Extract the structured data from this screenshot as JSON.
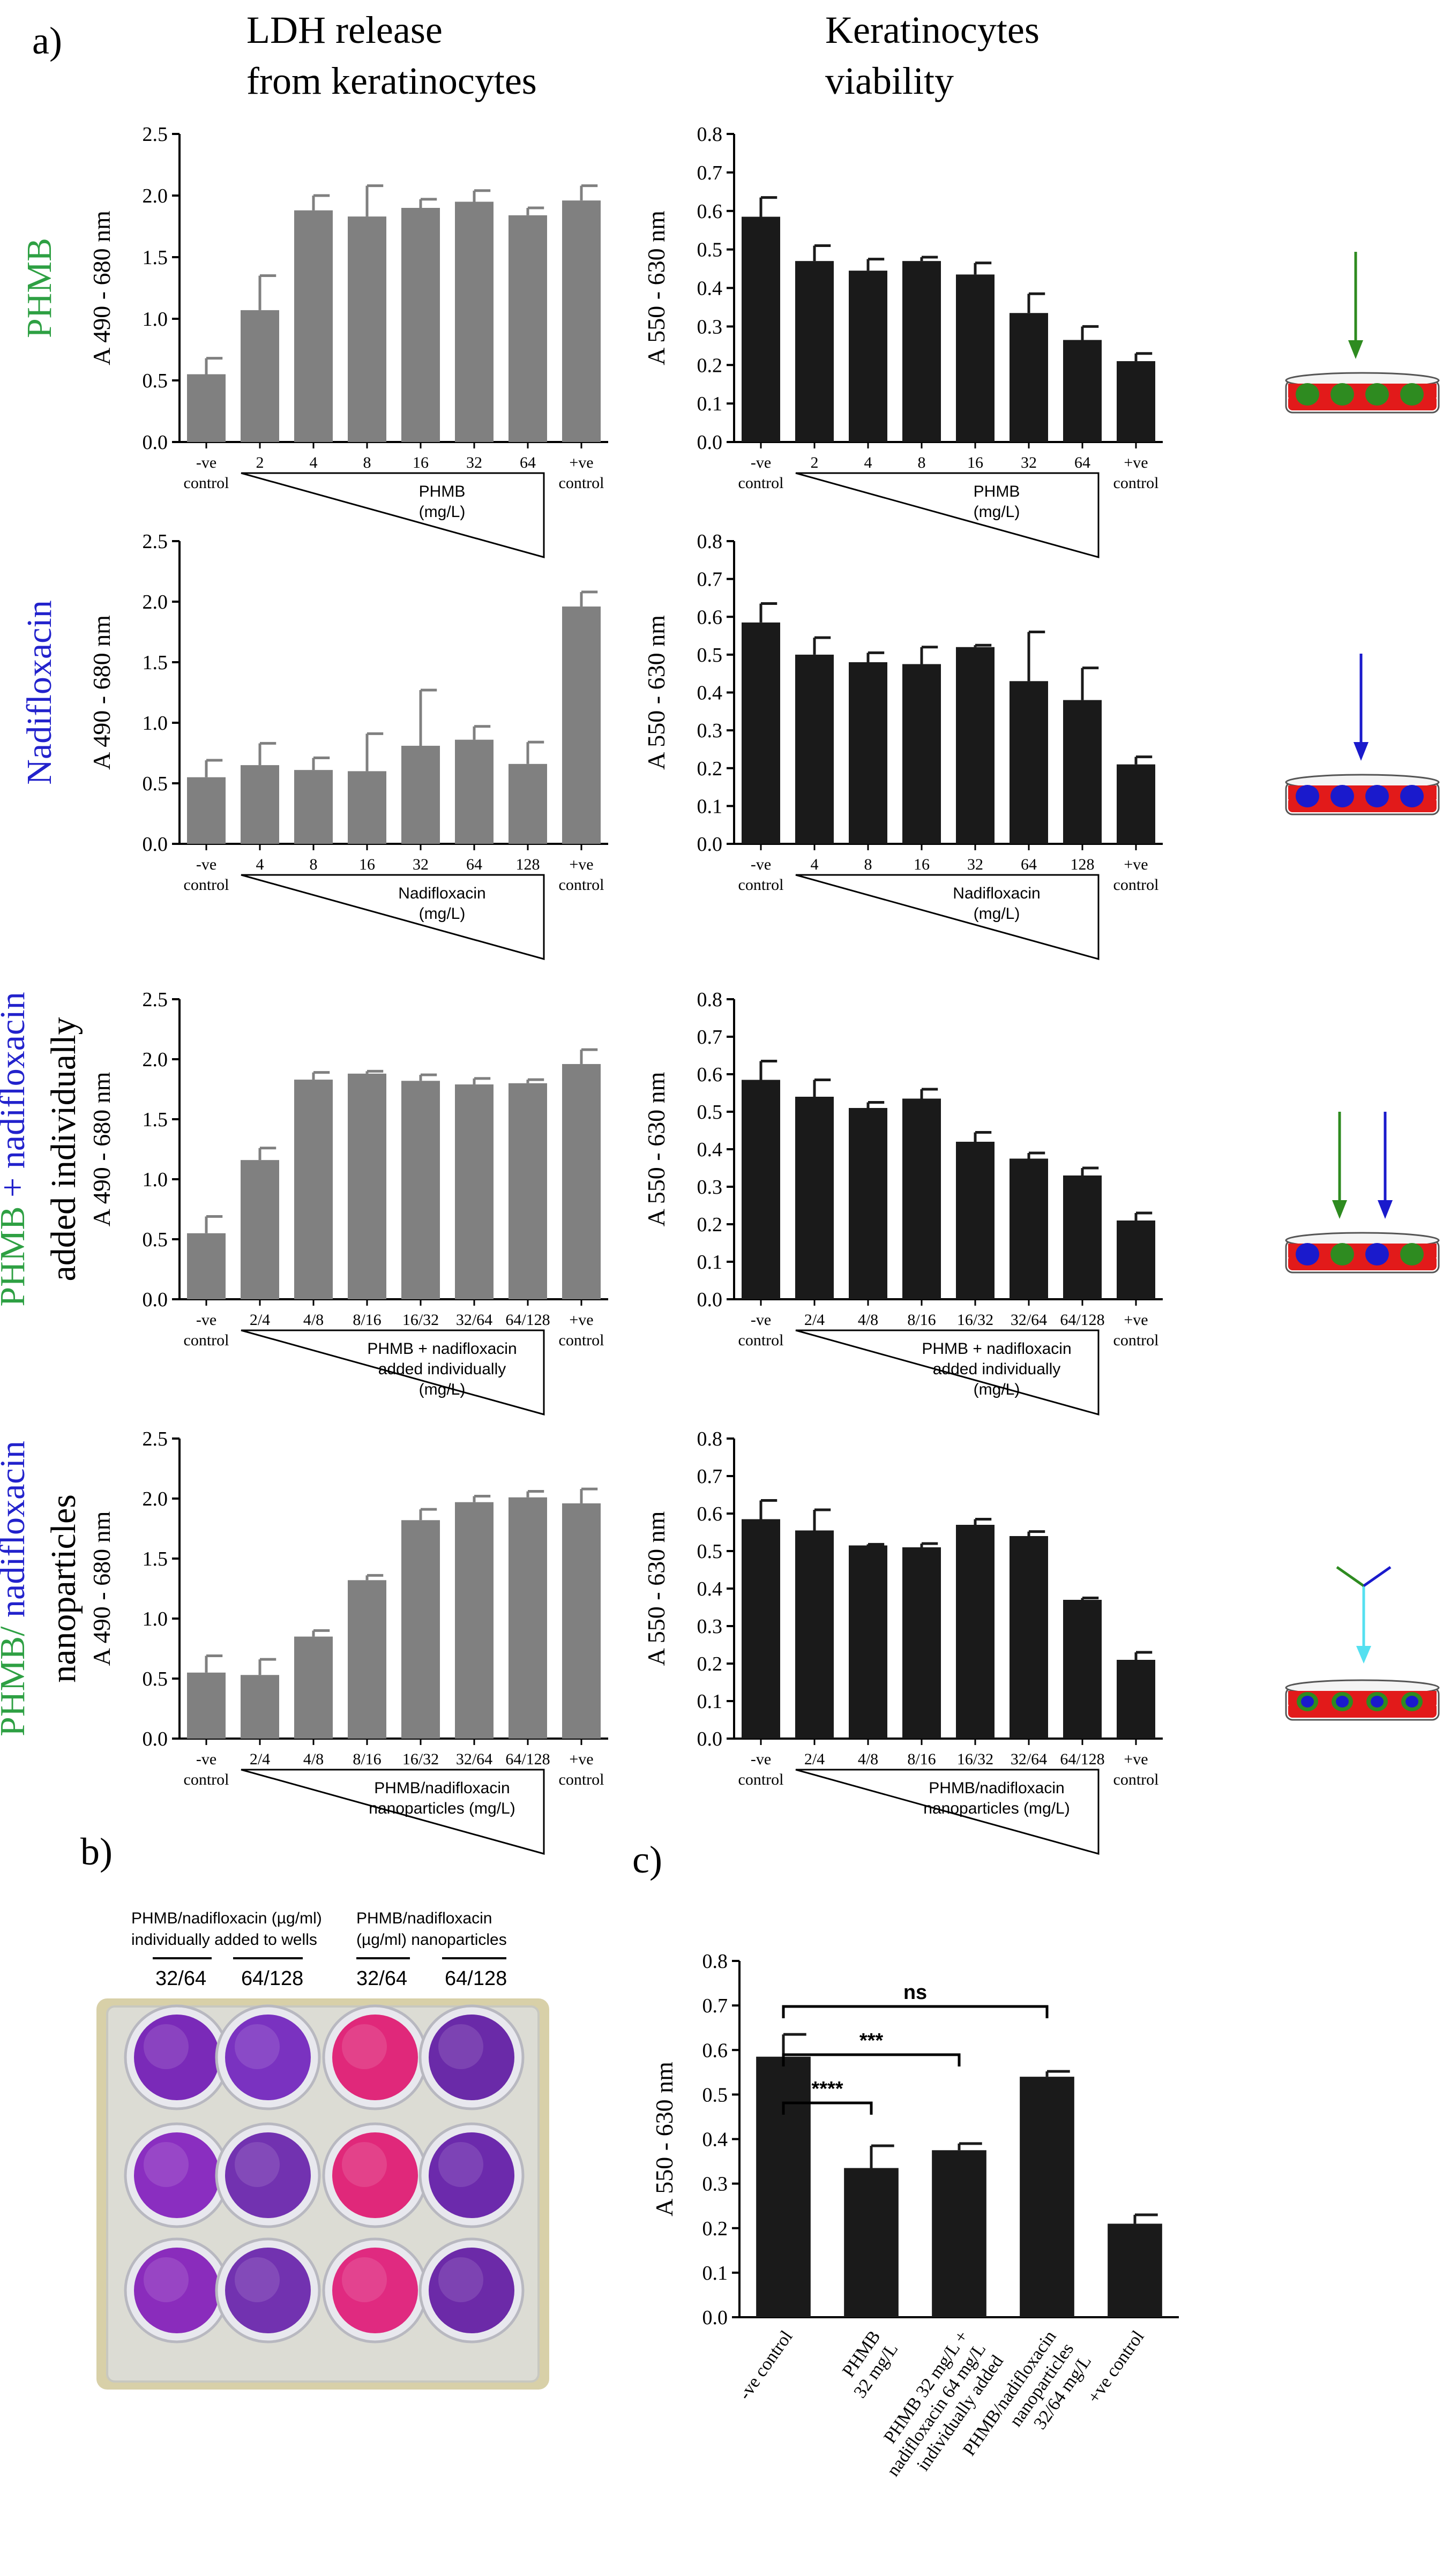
{
  "panel_a": {
    "label": "a)",
    "col_left_title": [
      "LDH release",
      "from keratinocytes"
    ],
    "col_right_title": [
      "Keratinocytes",
      "viability"
    ],
    "rows": [
      {
        "label_lines": [
          {
            "segments": [
              {
                "text": "PHMB",
                "color": "#2ea043"
              }
            ]
          }
        ]
      },
      {
        "label_lines": [
          {
            "segments": [
              {
                "text": "Nadifloxacin",
                "color": "#2222cc"
              }
            ]
          }
        ]
      },
      {
        "label_lines": [
          {
            "segments": [
              {
                "text": "PHMB",
                "color": "#2ea043"
              },
              {
                "text": " + ",
                "color": "#2222cc"
              },
              {
                "text": "nadifloxacin",
                "color": "#2222cc"
              }
            ]
          },
          {
            "segments": [
              {
                "text": "added individually",
                "color": "#000000"
              }
            ]
          }
        ]
      },
      {
        "label_lines": [
          {
            "segments": [
              {
                "text": "PHMB",
                "color": "#2ea043"
              },
              {
                "text": "/ ",
                "color": "#2ea043"
              },
              {
                "text": "nadifloxacin",
                "color": "#2222cc"
              }
            ]
          },
          {
            "segments": [
              {
                "text": "nanoparticles",
                "color": "#000000"
              }
            ]
          }
        ]
      }
    ]
  },
  "colors": {
    "ldh_bar": "#808080",
    "viability_bar": "#1a1a1a",
    "phmb": "#2e8b20",
    "nadifloxacin": "#1a1acc",
    "nano_stem": "#55e0f0",
    "dish_red": "#e21a1a"
  },
  "chart_data": [
    {
      "id": "ldh_phmb",
      "type": "bar",
      "ylabel": "A 490 - 680 nm",
      "ylim": [
        0,
        2.5
      ],
      "yticks": [
        "0.0",
        "0.5",
        "1.0",
        "1.5",
        "2.0",
        "2.5"
      ],
      "categories": [
        "-ve\ncontrol",
        "2",
        "4",
        "8",
        "16",
        "32",
        "64",
        "+ve\ncontrol"
      ],
      "values": [
        0.55,
        1.07,
        1.88,
        1.83,
        1.9,
        1.95,
        1.84,
        1.96
      ],
      "errors": [
        0.13,
        0.28,
        0.12,
        0.25,
        0.07,
        0.09,
        0.06,
        0.12
      ],
      "wedge_label": [
        "PHMB",
        "(mg/L)"
      ]
    },
    {
      "id": "via_phmb",
      "type": "bar",
      "ylabel": "A 550 - 630 nm",
      "ylim": [
        0,
        0.8
      ],
      "yticks": [
        "0.0",
        "0.1",
        "0.2",
        "0.3",
        "0.4",
        "0.5",
        "0.6",
        "0.7",
        "0.8"
      ],
      "categories": [
        "-ve\ncontrol",
        "2",
        "4",
        "8",
        "16",
        "32",
        "64",
        "+ve\ncontrol"
      ],
      "values": [
        0.585,
        0.47,
        0.445,
        0.47,
        0.435,
        0.335,
        0.265,
        0.21
      ],
      "errors": [
        0.05,
        0.04,
        0.03,
        0.01,
        0.03,
        0.05,
        0.035,
        0.02
      ],
      "wedge_label": [
        "PHMB",
        "(mg/L)"
      ]
    },
    {
      "id": "ldh_nadi",
      "type": "bar",
      "ylabel": "A 490 - 680 nm",
      "ylim": [
        0,
        2.5
      ],
      "yticks": [
        "0.0",
        "0.5",
        "1.0",
        "1.5",
        "2.0",
        "2.5"
      ],
      "categories": [
        "-ve\ncontrol",
        "4",
        "8",
        "16",
        "32",
        "64",
        "128",
        "+ve\ncontrol"
      ],
      "values": [
        0.55,
        0.65,
        0.61,
        0.6,
        0.81,
        0.86,
        0.66,
        1.96
      ],
      "errors": [
        0.14,
        0.18,
        0.1,
        0.31,
        0.46,
        0.11,
        0.18,
        0.12
      ],
      "wedge_label": [
        "Nadifloxacin",
        "(mg/L)"
      ]
    },
    {
      "id": "via_nadi",
      "type": "bar",
      "ylabel": "A 550 - 630 nm",
      "ylim": [
        0,
        0.8
      ],
      "yticks": [
        "0.0",
        "0.1",
        "0.2",
        "0.3",
        "0.4",
        "0.5",
        "0.6",
        "0.7",
        "0.8"
      ],
      "categories": [
        "-ve\ncontrol",
        "4",
        "8",
        "16",
        "32",
        "64",
        "128",
        "+ve\ncontrol"
      ],
      "values": [
        0.585,
        0.5,
        0.48,
        0.475,
        0.52,
        0.43,
        0.38,
        0.21
      ],
      "errors": [
        0.05,
        0.045,
        0.025,
        0.045,
        0.005,
        0.13,
        0.085,
        0.02
      ],
      "wedge_label": [
        "Nadifloxacin",
        "(mg/L)"
      ]
    },
    {
      "id": "ldh_indiv",
      "type": "bar",
      "ylabel": "A 490 - 680 nm",
      "ylim": [
        0,
        2.5
      ],
      "yticks": [
        "0.0",
        "0.5",
        "1.0",
        "1.5",
        "2.0",
        "2.5"
      ],
      "categories": [
        "-ve\ncontrol",
        "2/4",
        "4/8",
        "8/16",
        "16/32",
        "32/64",
        "64/128",
        "+ve\ncontrol"
      ],
      "values": [
        0.55,
        1.16,
        1.83,
        1.88,
        1.82,
        1.79,
        1.8,
        1.96
      ],
      "errors": [
        0.14,
        0.1,
        0.06,
        0.02,
        0.05,
        0.05,
        0.03,
        0.12
      ],
      "wedge_label": [
        "PHMB + nadifloxacin",
        "added individually",
        "(mg/L)"
      ]
    },
    {
      "id": "via_indiv",
      "type": "bar",
      "ylabel": "A 550 - 630 nm",
      "ylim": [
        0,
        0.8
      ],
      "yticks": [
        "0.0",
        "0.1",
        "0.2",
        "0.3",
        "0.4",
        "0.5",
        "0.6",
        "0.7",
        "0.8"
      ],
      "categories": [
        "-ve\ncontrol",
        "2/4",
        "4/8",
        "8/16",
        "16/32",
        "32/64",
        "64/128",
        "+ve\ncontrol"
      ],
      "values": [
        0.585,
        0.54,
        0.51,
        0.535,
        0.42,
        0.375,
        0.33,
        0.21
      ],
      "errors": [
        0.05,
        0.045,
        0.015,
        0.025,
        0.025,
        0.015,
        0.02,
        0.02
      ],
      "wedge_label": [
        "PHMB + nadifloxacin",
        "added individually",
        "(mg/L)"
      ]
    },
    {
      "id": "ldh_nano",
      "type": "bar",
      "ylabel": "A 490 - 680 nm",
      "ylim": [
        0,
        2.5
      ],
      "yticks": [
        "0.0",
        "0.5",
        "1.0",
        "1.5",
        "2.0",
        "2.5"
      ],
      "categories": [
        "-ve\ncontrol",
        "2/4",
        "4/8",
        "8/16",
        "16/32",
        "32/64",
        "64/128",
        "+ve\ncontrol"
      ],
      "values": [
        0.55,
        0.53,
        0.85,
        1.32,
        1.82,
        1.97,
        2.01,
        1.96
      ],
      "errors": [
        0.14,
        0.13,
        0.05,
        0.04,
        0.09,
        0.05,
        0.05,
        0.12
      ],
      "wedge_label": [
        "PHMB/nadifloxacin",
        "nanoparticles (mg/L)"
      ]
    },
    {
      "id": "via_nano",
      "type": "bar",
      "ylabel": "A 550 - 630 nm",
      "ylim": [
        0,
        0.8
      ],
      "yticks": [
        "0.0",
        "0.1",
        "0.2",
        "0.3",
        "0.4",
        "0.5",
        "0.6",
        "0.7",
        "0.8"
      ],
      "categories": [
        "-ve\ncontrol",
        "2/4",
        "4/8",
        "8/16",
        "16/32",
        "32/64",
        "64/128",
        "+ve\ncontrol"
      ],
      "values": [
        0.585,
        0.555,
        0.515,
        0.51,
        0.57,
        0.54,
        0.37,
        0.21
      ],
      "errors": [
        0.05,
        0.055,
        0.003,
        0.01,
        0.015,
        0.012,
        0.005,
        0.02
      ],
      "wedge_label": [
        "PHMB/nadifloxacin",
        "nanoparticles (mg/L)"
      ]
    },
    {
      "id": "panel_c",
      "type": "bar",
      "ylabel": "A 550 - 630 nm",
      "ylim": [
        0,
        0.8
      ],
      "yticks": [
        "0.0",
        "0.1",
        "0.2",
        "0.3",
        "0.4",
        "0.5",
        "0.6",
        "0.7",
        "0.8"
      ],
      "categories": [
        "-ve control",
        "PHMB\n32 mg/L",
        "PHMB 32 mg/L +\nnadifloxacin 64 mg/L\nindividually added",
        "PHMB/nadifloxacin\nnanoparticles\n32/64 mg/L",
        "+ve control"
      ],
      "values": [
        0.585,
        0.335,
        0.375,
        0.54,
        0.21
      ],
      "errors": [
        0.05,
        0.05,
        0.015,
        0.012,
        0.02
      ],
      "significance": [
        {
          "from": 0,
          "to": 1,
          "label": "****"
        },
        {
          "from": 0,
          "to": 2,
          "label": "***"
        },
        {
          "from": 0,
          "to": 3,
          "label": "ns"
        }
      ]
    }
  ],
  "panel_b": {
    "label": "b)",
    "group1_title": [
      "PHMB/nadifloxacin (µg/ml)",
      "individually added to wells"
    ],
    "group2_title": [
      "PHMB/nadifloxacin",
      "(µg/ml) nanoparticles"
    ],
    "col_labels": [
      "32/64",
      "64/128",
      "32/64",
      "64/128"
    ],
    "well_colors": [
      [
        "#7a2ab8",
        "#7a32c0",
        "#e0287a",
        "#6a2aa8"
      ],
      [
        "#8a2ec0",
        "#7232b0",
        "#e0287a",
        "#6c2aac"
      ],
      [
        "#8a2cbc",
        "#7232b0",
        "#e02a80",
        "#6c2aa8"
      ]
    ]
  },
  "panel_c": {
    "label": "c)"
  }
}
